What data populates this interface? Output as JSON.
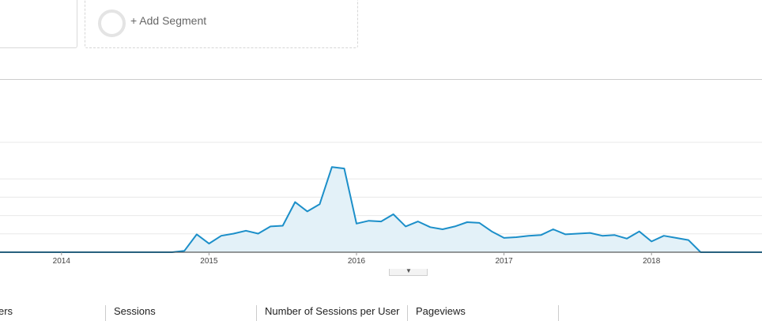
{
  "segments": {
    "add_label": "+ Add Segment"
  },
  "chart_data": {
    "type": "area",
    "series": [
      {
        "values": [
          0,
          0,
          0,
          0,
          0,
          0,
          0,
          0,
          0,
          0,
          0,
          0,
          0,
          0,
          0,
          0,
          0.2,
          2.5,
          1.2,
          2.3,
          2.6,
          3.0,
          2.6,
          3.6,
          3.7,
          7.0,
          5.7,
          6.7,
          11.9,
          11.7,
          4.0,
          4.4,
          4.3,
          5.3,
          3.6,
          4.3,
          3.5,
          3.2,
          3.6,
          4.2,
          4.1,
          2.9,
          2.0,
          2.1,
          2.3,
          2.4,
          3.2,
          2.5,
          2.6,
          2.7,
          2.3,
          2.4,
          1.9,
          2.9,
          1.5,
          2.3,
          2.0,
          1.7,
          0,
          0,
          0,
          0,
          0,
          0,
          0,
          0,
          0,
          0,
          0,
          0,
          0,
          0
        ]
      }
    ],
    "x_labels": [
      "2014",
      "2015",
      "2016",
      "2017",
      "2018"
    ],
    "x_range": [
      "2013-07",
      "2019-01"
    ],
    "ylim": [
      0,
      18
    ],
    "grid": true,
    "colors": {
      "line": "#1c8fc9",
      "fill": "#e3f1f8",
      "grid": "#e8e8e8",
      "axis": "#333333"
    }
  },
  "metrics": {
    "tabs": [
      "ers",
      "Sessions",
      "Number of Sessions per User",
      "Pageviews"
    ]
  }
}
